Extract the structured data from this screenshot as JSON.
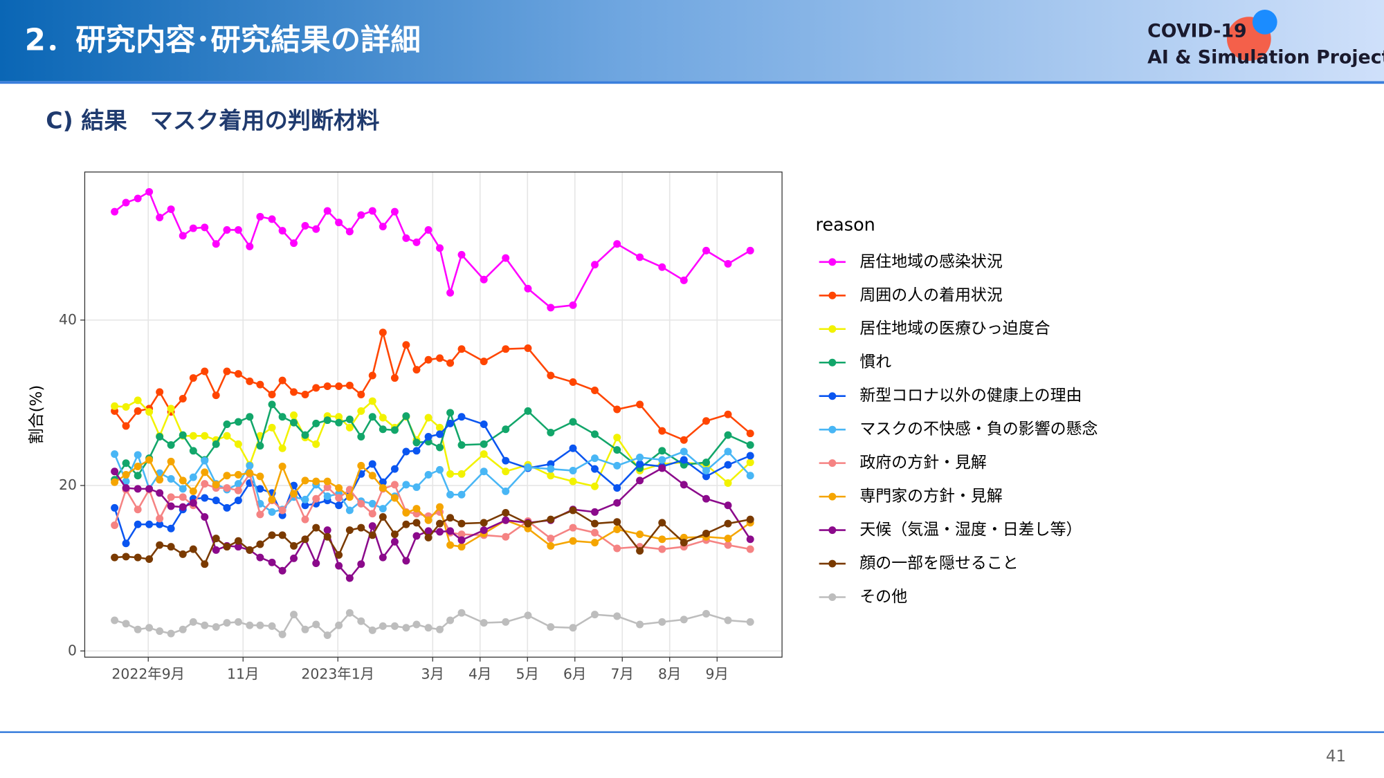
{
  "header": {
    "title": "2．研究内容･研究結果の詳細",
    "logo": [
      "COVID-19",
      "AI & Simulation Project"
    ]
  },
  "subtitle": "C) 結果　マスク着用の判断材料",
  "page_number": "41",
  "chart_data": {
    "type": "line",
    "ylabel": "割合(%)",
    "legend_title": "reason",
    "x": [
      8.29,
      8.53,
      8.78,
      9.02,
      9.24,
      9.48,
      9.73,
      9.95,
      10.19,
      10.43,
      10.66,
      10.9,
      11.14,
      11.36,
      11.61,
      11.83,
      12.07,
      12.31,
      12.54,
      12.78,
      13.02,
      13.25,
      13.49,
      13.73,
      13.95,
      14.2,
      14.44,
      14.66,
      14.91,
      15.15,
      15.37,
      15.61,
      16.08,
      16.54,
      17.01,
      17.49,
      17.96,
      18.42,
      18.89,
      19.37,
      19.84,
      20.3,
      20.77,
      21.23,
      21.7
    ],
    "xlim": [
      7.66,
      22.37
    ],
    "xticks": [
      {
        "value": 9,
        "label": "2022年9月"
      },
      {
        "value": 11,
        "label": "11月"
      },
      {
        "value": 13,
        "label": "2023年1月"
      },
      {
        "value": 15,
        "label": "3月"
      },
      {
        "value": 16,
        "label": "4月"
      },
      {
        "value": 17,
        "label": "5月"
      },
      {
        "value": 18,
        "label": "6月"
      },
      {
        "value": 19,
        "label": "7月"
      },
      {
        "value": 20,
        "label": "8月"
      },
      {
        "value": 21,
        "label": "9月"
      }
    ],
    "ylim": [
      -0.75,
      57.9
    ],
    "yticks": [
      0,
      20,
      40
    ],
    "grid": true,
    "series": [
      {
        "name": "居住地域の感染状況",
        "color": "#ff00ff",
        "values": [
          53.1,
          54.2,
          54.7,
          55.5,
          52.4,
          53.4,
          50.2,
          51.1,
          51.2,
          49.2,
          50.9,
          50.9,
          48.9,
          52.5,
          52.2,
          50.8,
          49.3,
          51.4,
          51,
          53.2,
          51.8,
          50.7,
          52.7,
          53.2,
          51.3,
          53.1,
          49.9,
          49.4,
          50.9,
          48.7,
          43.3,
          47.9,
          44.9,
          47.5,
          43.8,
          41.5,
          41.8,
          46.7,
          49.2,
          47.6,
          46.4,
          44.8,
          48.4,
          46.8,
          48.4
        ]
      },
      {
        "name": "周囲の人の着用状況",
        "color": "#ff4500",
        "values": [
          29,
          27.2,
          29,
          29.3,
          31.3,
          28.9,
          30.5,
          33,
          33.8,
          30.9,
          33.8,
          33.5,
          32.6,
          32.2,
          31,
          32.7,
          31.3,
          31,
          31.8,
          32,
          32,
          32.1,
          31,
          33.3,
          38.5,
          33,
          37,
          34,
          35.2,
          35.4,
          34.8,
          36.5,
          35,
          36.5,
          36.6,
          33.3,
          32.5,
          31.5,
          29.2,
          29.8,
          26.6,
          25.5,
          27.8,
          28.6,
          26.3
        ]
      },
      {
        "name": "居住地域の医療ひっ迫度合",
        "color": "#f2f200",
        "values": [
          29.6,
          29.5,
          30.3,
          28.9,
          26,
          29.3,
          26,
          26,
          26,
          25.5,
          26,
          25,
          22.5,
          26,
          27,
          24.5,
          28.5,
          25.8,
          25,
          28.4,
          28.3,
          27,
          29,
          30.2,
          28.2,
          27,
          28.3,
          25.5,
          28.2,
          27,
          21.4,
          21.4,
          23.8,
          21.7,
          22.5,
          21.2,
          20.5,
          19.9,
          25.8,
          21.8,
          22.6,
          22.8,
          22.5,
          20.3,
          22.8
        ]
      },
      {
        "name": "慣れ",
        "color": "#12a66a",
        "values": [
          20.7,
          22.7,
          21.2,
          23.3,
          25.9,
          24.9,
          26.1,
          24.2,
          23.1,
          25,
          27.4,
          27.7,
          28.3,
          24.8,
          29.8,
          28.3,
          27.6,
          26.1,
          27.5,
          27.9,
          27.6,
          28,
          25.9,
          28.3,
          26.8,
          26.7,
          28.4,
          25.2,
          25.3,
          24.6,
          28.8,
          24.9,
          25,
          26.8,
          29,
          26.4,
          27.7,
          26.2,
          24.3,
          22.1,
          24.2,
          22.5,
          22.8,
          26.1,
          24.9
        ]
      },
      {
        "name": "新型コロナ以外の健康上の理由",
        "color": "#0a55f0",
        "values": [
          17.3,
          13,
          15.3,
          15.3,
          15.3,
          14.8,
          17.1,
          18.4,
          18.5,
          18.2,
          17.3,
          18.2,
          20.3,
          19.6,
          19.1,
          16.4,
          20,
          17.6,
          17.8,
          18.2,
          17.6,
          18.8,
          21.4,
          22.6,
          20.4,
          22,
          24.1,
          24.2,
          25.9,
          26.2,
          27.5,
          28.3,
          27.4,
          23,
          22.1,
          22.6,
          24.5,
          22,
          19.7,
          22.6,
          22.3,
          23.1,
          21.1,
          22.5,
          23.6
        ]
      },
      {
        "name": "マスクの不快感・負の影響の懸念",
        "color": "#48b6f5",
        "values": [
          23.8,
          20.5,
          23.7,
          19.6,
          21.5,
          20.8,
          19.6,
          21,
          23,
          20.2,
          19.5,
          20.2,
          22.4,
          17.8,
          16.8,
          17.1,
          18.6,
          18.3,
          20.1,
          18.7,
          19,
          17,
          18.1,
          17.8,
          17.2,
          18.7,
          20.1,
          19.8,
          21.3,
          21.9,
          18.9,
          18.9,
          21.7,
          19.3,
          22.2,
          22,
          21.8,
          23.3,
          22.4,
          23.4,
          23.1,
          24.1,
          21.8,
          24.1,
          21.2
        ]
      },
      {
        "name": "政府の方針・見解",
        "color": "#f58383",
        "values": [
          15.2,
          19.5,
          17.1,
          19.5,
          16,
          18.6,
          18.6,
          17.6,
          20.2,
          19.7,
          19.7,
          19.4,
          21.4,
          16.5,
          18.2,
          17,
          19,
          15.9,
          18.4,
          19.8,
          18.5,
          19.5,
          17.8,
          16.6,
          19.6,
          20.1,
          16.8,
          16.6,
          16.3,
          16.8,
          14.3,
          14.1,
          14,
          13.8,
          15.7,
          13.6,
          14.9,
          14.3,
          12.4,
          12.6,
          12.3,
          12.6,
          13.4,
          12.8,
          12.3
        ]
      },
      {
        "name": "専門家の方針・見解",
        "color": "#f5a500",
        "values": [
          20.4,
          21.3,
          22.3,
          23.1,
          20.7,
          22.9,
          20.6,
          19.3,
          21.6,
          20.1,
          21.2,
          21.3,
          21.5,
          21.1,
          18.3,
          22.3,
          19,
          20.6,
          20.5,
          20.5,
          19.7,
          18.6,
          22.4,
          21.2,
          19.7,
          18.5,
          16.7,
          17.2,
          15.8,
          17.4,
          12.8,
          12.6,
          14.2,
          15.8,
          14.8,
          12.7,
          13.3,
          13.1,
          14.7,
          14.1,
          13.5,
          13.7,
          13.8,
          13.6,
          15.5
        ]
      },
      {
        "name": "天候（気温・湿度・日差し等）",
        "color": "#8b0a8b",
        "values": [
          21.7,
          19.7,
          19.6,
          19.6,
          19.1,
          17.5,
          17.4,
          17.9,
          16.2,
          12.2,
          12.7,
          12.6,
          12.2,
          11.3,
          10.7,
          9.7,
          11.2,
          13.5,
          10.6,
          14.6,
          10.3,
          8.8,
          10.5,
          15.1,
          11.3,
          13.2,
          10.9,
          13.9,
          14.5,
          14.4,
          14.5,
          13.4,
          14.6,
          15.8,
          15.5,
          15.8,
          17.1,
          16.8,
          17.9,
          20.6,
          22.1,
          20.1,
          18.4,
          17.6,
          13.5
        ]
      },
      {
        "name": "顔の一部を隠せること",
        "color": "#7a3a00",
        "values": [
          11.3,
          11.4,
          11.3,
          11.1,
          12.8,
          12.6,
          11.7,
          12.3,
          10.5,
          13.6,
          12.6,
          13.3,
          12.2,
          12.9,
          14,
          14,
          12.7,
          13.5,
          14.9,
          13.8,
          11.6,
          14.6,
          14.9,
          14,
          16.2,
          14.1,
          15.3,
          15.5,
          13.7,
          15.4,
          16.1,
          15.4,
          15.5,
          16.7,
          15.4,
          15.9,
          17,
          15.4,
          15.6,
          12.1,
          15.5,
          13.1,
          14.2,
          15.4,
          15.9
        ]
      },
      {
        "name": "その他",
        "color": "#bdbdbd",
        "values": [
          3.7,
          3.3,
          2.6,
          2.8,
          2.4,
          2.1,
          2.6,
          3.5,
          3.1,
          2.9,
          3.4,
          3.5,
          3.1,
          3.1,
          3,
          2,
          4.4,
          2.6,
          3.2,
          1.9,
          3.1,
          4.6,
          3.6,
          2.5,
          3,
          3,
          2.8,
          3.2,
          2.8,
          2.6,
          3.7,
          4.6,
          3.4,
          3.5,
          4.3,
          2.9,
          2.8,
          4.4,
          4.2,
          3.2,
          3.5,
          3.8,
          4.5,
          3.7,
          3.5
        ]
      }
    ]
  }
}
